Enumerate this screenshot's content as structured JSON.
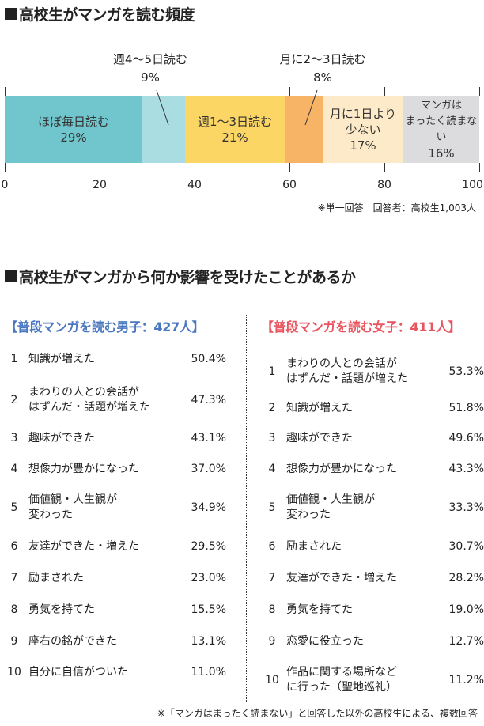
{
  "title1": "高校生がマンガを読む頻度",
  "chart_data": {
    "type": "bar",
    "orientation": "horizontal-stacked",
    "title": "高校生がマンガを読む頻度",
    "categories": [
      "ほぼ毎日読む",
      "週4～5日読む",
      "週1～3日読む",
      "月に2～3日読む",
      "月に1日より少ない",
      "マンガはまったく読まない"
    ],
    "values": [
      29,
      9,
      21,
      8,
      17,
      16
    ],
    "value_labels": [
      "29%",
      "9%",
      "21%",
      "8%",
      "17%",
      "16%"
    ],
    "colors": [
      "#70c6cc",
      "#aadde2",
      "#fcd665",
      "#f8b466",
      "#fdeac8",
      "#dcdcdf"
    ],
    "xticks": [
      "0",
      "20",
      "40",
      "60",
      "80",
      "100(%)"
    ],
    "xlim": [
      0,
      100
    ],
    "note": "※単一回答　回答者：高校生1,003人"
  },
  "title2": "高校生がマンガから何か影響を受けたことがあるか",
  "male": {
    "header": "【普段マンガを読む男子：427人】",
    "color": "#4a78c0",
    "rows": [
      {
        "rank": "1",
        "label": "知識が増えた",
        "value": "50.4%"
      },
      {
        "rank": "2",
        "label": "まわりの人との会話が\nはずんだ・話題が増えた",
        "value": "47.3%"
      },
      {
        "rank": "3",
        "label": "趣味ができた",
        "value": "43.1%"
      },
      {
        "rank": "4",
        "label": "想像力が豊かになった",
        "value": "37.0%"
      },
      {
        "rank": "5",
        "label": "価値観・人生観が\n変わった",
        "value": "34.9%"
      },
      {
        "rank": "6",
        "label": "友達ができた・増えた",
        "value": "29.5%"
      },
      {
        "rank": "7",
        "label": "励まされた",
        "value": "23.0%"
      },
      {
        "rank": "8",
        "label": "勇気を持てた",
        "value": "15.5%"
      },
      {
        "rank": "9",
        "label": "座右の銘ができた",
        "value": "13.1%"
      },
      {
        "rank": "10",
        "label": "自分に自信がついた",
        "value": "11.0%"
      }
    ]
  },
  "female": {
    "header": "【普段マンガを読む女子：411人】",
    "color": "#e8545f",
    "rows": [
      {
        "rank": "1",
        "label": "まわりの人との会話が\nはずんだ・話題が増えた",
        "value": "53.3%"
      },
      {
        "rank": "2",
        "label": "知識が増えた",
        "value": "51.8%"
      },
      {
        "rank": "3",
        "label": "趣味ができた",
        "value": "49.6%"
      },
      {
        "rank": "4",
        "label": "想像力が豊かになった",
        "value": "43.3%"
      },
      {
        "rank": "5",
        "label": "価値観・人生観が\n変わった",
        "value": "33.3%"
      },
      {
        "rank": "6",
        "label": "励まされた",
        "value": "30.7%"
      },
      {
        "rank": "7",
        "label": "友達ができた・増えた",
        "value": "28.2%"
      },
      {
        "rank": "8",
        "label": "勇気を持てた",
        "value": "19.0%"
      },
      {
        "rank": "9",
        "label": "恋愛に役立った",
        "value": "12.7%"
      },
      {
        "rank": "10",
        "label": "作品に関する場所など\nに行った（聖地巡礼）",
        "value": "11.2%"
      }
    ]
  },
  "footnote": "※「マンガはまったく読まない」と回答した以外の高校生による、複数回答"
}
